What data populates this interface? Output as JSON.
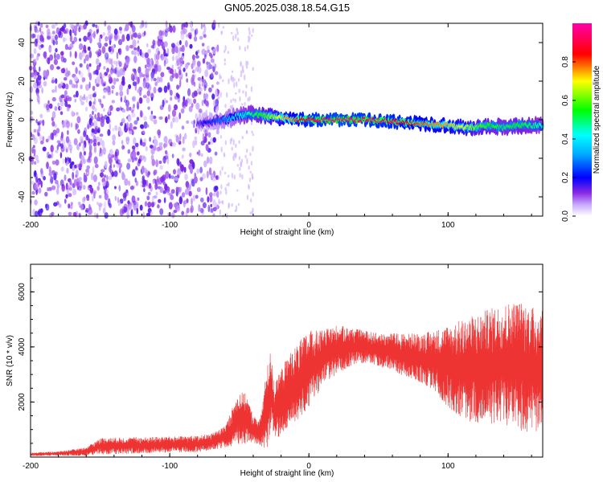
{
  "chart_data": [
    {
      "type": "heatmap",
      "title": "GN05.2025.038.18.54.G15",
      "xlabel": "Height of straight line (km)",
      "ylabel": "Frequency (Hz)",
      "xlim": [
        -200,
        168
      ],
      "ylim": [
        -50,
        50
      ],
      "x_ticks": [
        -200,
        -100,
        0,
        100
      ],
      "y_ticks": [
        -40,
        -20,
        0,
        20,
        40
      ],
      "colorbar": {
        "label": "Normalized spectral amplitude",
        "range": [
          0,
          1
        ],
        "ticks": [
          0.0,
          0.2,
          0.4,
          0.6,
          0.8
        ],
        "colors": [
          "#ffffff",
          "#8a2be2",
          "#0000ff",
          "#00ffff",
          "#00ff00",
          "#ffff00",
          "#ff0000",
          "#ff00ff"
        ]
      },
      "features": {
        "noise_region_x": [
          -200,
          -65
        ],
        "noise_amplitude": 0.08,
        "signal_trace": {
          "x": [
            -80,
            -60,
            -50,
            -40,
            -30,
            -20,
            -10,
            0,
            10,
            20,
            40,
            60,
            80,
            100,
            110,
            120,
            130,
            140,
            150,
            160,
            168
          ],
          "y": [
            -2,
            0,
            2,
            3,
            2,
            1,
            0,
            0,
            0,
            0,
            0,
            -1,
            -2,
            -3,
            -4,
            -4,
            -3,
            -4,
            -3,
            -3,
            -3
          ],
          "amplitude": [
            0.15,
            0.3,
            0.4,
            0.5,
            0.6,
            0.7,
            0.8,
            0.9,
            0.95,
            1.0,
            0.95,
            0.9,
            0.8,
            0.75,
            0.7,
            0.6,
            0.55,
            0.5,
            0.55,
            0.5,
            0.45
          ]
        }
      }
    },
    {
      "type": "line",
      "xlabel": "Height of straight line (km)",
      "ylabel": "SNR (10 * v/v)",
      "xlim": [
        -200,
        168
      ],
      "ylim": [
        0,
        7000
      ],
      "x_ticks": [
        -200,
        -100,
        0,
        100
      ],
      "y_ticks": [
        2000,
        4000,
        6000
      ],
      "color": "#ee3333",
      "series": [
        {
          "x": [
            -200,
            -180,
            -160,
            -150,
            -130,
            -110,
            -100,
            -80,
            -70,
            -60,
            -55,
            -50,
            -45,
            -40,
            -35,
            -30,
            -27,
            -25,
            -20,
            -15,
            -10,
            -5,
            0,
            10,
            20,
            30,
            40,
            50,
            60,
            70,
            80,
            90,
            100,
            110,
            120,
            130,
            140,
            150,
            160,
            168
          ],
          "center": [
            100,
            130,
            200,
            400,
            420,
            440,
            450,
            480,
            550,
            750,
            1100,
            1400,
            1400,
            1000,
            900,
            1800,
            2500,
            1600,
            2000,
            2400,
            2600,
            2900,
            3200,
            3600,
            3900,
            4000,
            4000,
            3900,
            3800,
            3700,
            3600,
            3500,
            3300,
            3200,
            3200,
            3300,
            3400,
            3300,
            3200,
            3100
          ],
          "spread": [
            60,
            80,
            150,
            300,
            300,
            300,
            300,
            300,
            300,
            400,
            700,
            1000,
            900,
            500,
            500,
            1500,
            1500,
            1000,
            1200,
            1300,
            1400,
            1400,
            1400,
            1000,
            900,
            700,
            600,
            600,
            700,
            800,
            900,
            1100,
            1500,
            1800,
            2000,
            2100,
            2200,
            2400,
            2300,
            2200
          ]
        }
      ]
    }
  ]
}
